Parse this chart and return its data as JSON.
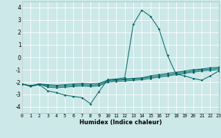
{
  "xlabel": "Humidex (Indice chaleur)",
  "xlim": [
    0,
    23
  ],
  "ylim": [
    -4.5,
    4.5
  ],
  "yticks": [
    -4,
    -3,
    -2,
    -1,
    0,
    1,
    2,
    3,
    4
  ],
  "xticks": [
    0,
    1,
    2,
    3,
    4,
    5,
    6,
    7,
    8,
    9,
    10,
    11,
    12,
    13,
    14,
    15,
    16,
    17,
    18,
    19,
    20,
    21,
    22,
    23
  ],
  "bg_color": "#cce8e8",
  "grid_color": "#ffffff",
  "line_color": "#006666",
  "x": [
    0,
    1,
    2,
    3,
    4,
    5,
    6,
    7,
    8,
    9,
    10,
    11,
    12,
    13,
    14,
    15,
    16,
    17,
    18,
    19,
    20,
    21,
    22,
    23
  ],
  "curve1": [
    -2.15,
    -2.35,
    -2.2,
    -2.7,
    -2.85,
    -3.05,
    -3.15,
    -3.25,
    -3.75,
    -2.75,
    -1.8,
    -1.75,
    -1.65,
    2.65,
    3.8,
    3.3,
    2.3,
    0.15,
    -1.35,
    -1.5,
    -1.7,
    -1.85,
    -1.5,
    -1.1
  ],
  "curve2": [
    -2.15,
    -2.3,
    -2.15,
    -2.2,
    -2.25,
    -2.2,
    -2.15,
    -2.1,
    -2.15,
    -2.1,
    -1.85,
    -1.8,
    -1.75,
    -1.7,
    -1.65,
    -1.5,
    -1.4,
    -1.3,
    -1.2,
    -1.1,
    -1.0,
    -0.95,
    -0.85,
    -0.8
  ],
  "curve3": [
    -2.15,
    -2.3,
    -2.15,
    -2.3,
    -2.35,
    -2.3,
    -2.25,
    -2.2,
    -2.25,
    -2.2,
    -1.9,
    -1.85,
    -1.8,
    -1.75,
    -1.7,
    -1.6,
    -1.5,
    -1.4,
    -1.3,
    -1.2,
    -1.1,
    -1.0,
    -0.95,
    -0.9
  ],
  "curve4": [
    -2.15,
    -2.3,
    -2.15,
    -2.4,
    -2.45,
    -2.4,
    -2.35,
    -2.3,
    -2.35,
    -2.3,
    -2.0,
    -1.95,
    -1.9,
    -1.85,
    -1.8,
    -1.7,
    -1.6,
    -1.5,
    -1.4,
    -1.3,
    -1.2,
    -1.1,
    -1.05,
    -1.0
  ]
}
